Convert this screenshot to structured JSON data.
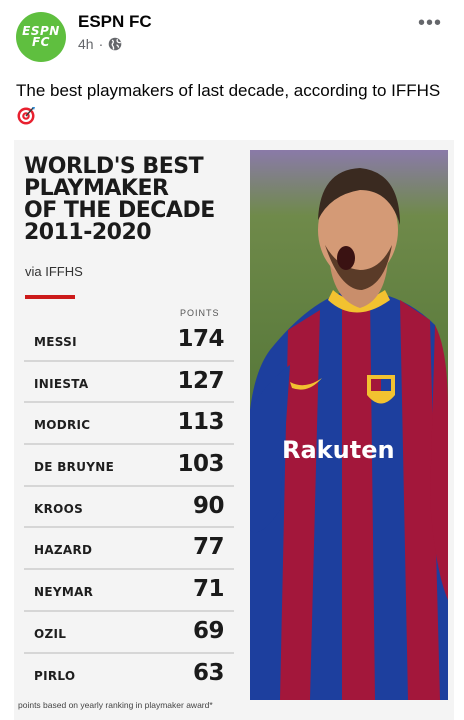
{
  "post": {
    "page_name": "ESPN FC",
    "time": "4h",
    "separator": "·",
    "more_label": "•••",
    "caption": "The best playmakers of last decade, according to IFFHS"
  },
  "avatar": {
    "logo_line1": "ESPN",
    "logo_line2": "FC",
    "color": "#5fbf3f"
  },
  "graphic": {
    "title_lines": [
      "WORLD'S BEST",
      "PLAYMAKER",
      "OF THE DECADE",
      "2011-2020"
    ],
    "via": "via IFFHS",
    "points_header": "POINTS",
    "footnote": "points based on yearly ranking in playmaker award*",
    "accent_color": "#cc1a1a"
  },
  "ranking": [
    {
      "player": "MESSI",
      "points": "174"
    },
    {
      "player": "INIESTA",
      "points": "127"
    },
    {
      "player": "MODRIC",
      "points": "113"
    },
    {
      "player": "DE BRUYNE",
      "points": "103"
    },
    {
      "player": "KROOS",
      "points": "90"
    },
    {
      "player": "HAZARD",
      "points": "77"
    },
    {
      "player": "NEYMAR",
      "points": "71"
    },
    {
      "player": "OZIL",
      "points": "69"
    },
    {
      "player": "PIRLO",
      "points": "63"
    }
  ],
  "photo": {
    "sponsor": "Rakuten",
    "kit_colors": [
      "#a3173b",
      "#1d3f9e",
      "#f2c230"
    ]
  }
}
